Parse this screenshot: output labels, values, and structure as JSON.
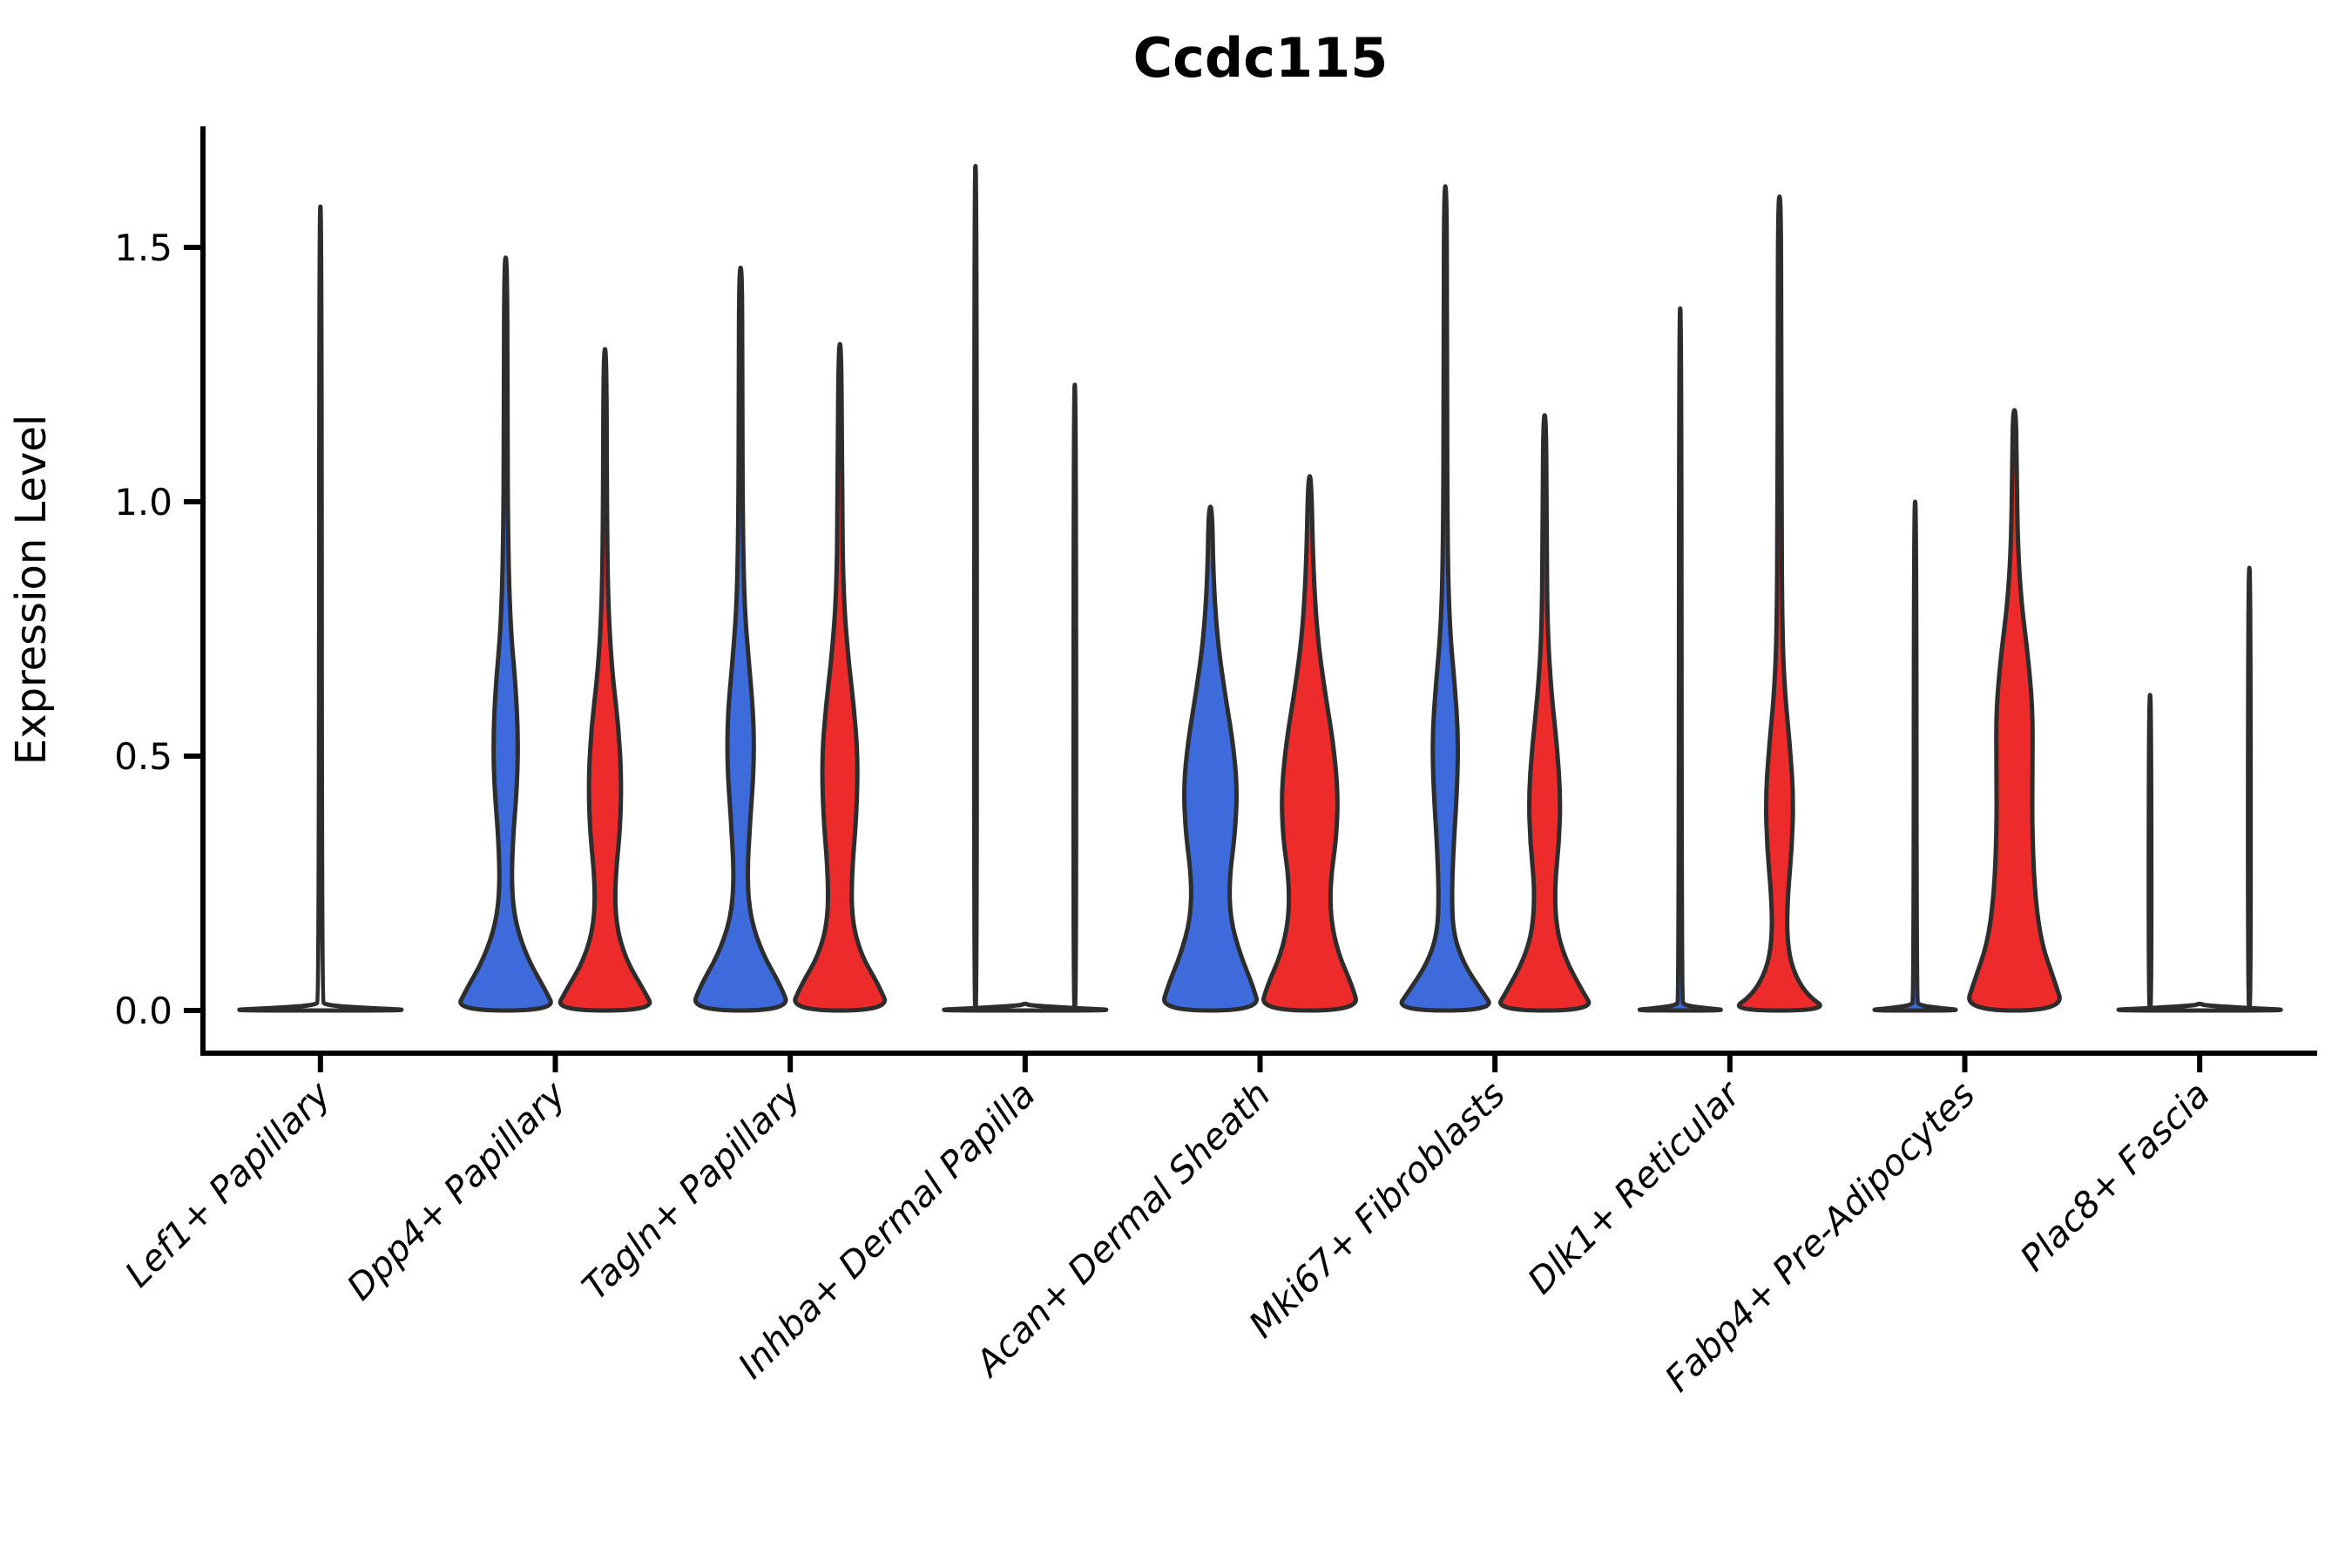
{
  "title": "Ccdc115",
  "ylabel": "Expression Level",
  "colors": {
    "blue": "#3D6BDC",
    "red": "#EE2B2B",
    "outline": "#2D2D2D",
    "axis": "#000000",
    "background": "#ffffff"
  },
  "chart_data": {
    "type": "violin",
    "title": "Ccdc115",
    "xlabel": "",
    "ylabel": "Expression Level",
    "yticks": [
      "0.0",
      "0.5",
      "1.0",
      "1.5"
    ],
    "ytick_values": [
      0.0,
      0.5,
      1.0,
      1.5
    ],
    "ylim": [
      0,
      1.74
    ],
    "grid": false,
    "legend": "none",
    "categories": [
      "Lef1+ Papillary",
      "Dpp4+ Papillary",
      "Tagln+ Papillary",
      "Inhba+ Dermal Papilla",
      "Acan+ Dermal Sheath",
      "Mki67+ Fibroblasts",
      "Dlk1+ Reticular",
      "Fabp4+ Pre-Adipocytes",
      "Plac8+ Fascia"
    ],
    "groups": [
      {
        "key": "blue",
        "color": "#3D6BDC",
        "dodge": "left"
      },
      {
        "key": "red",
        "color": "#EE2B2B",
        "dodge": "right"
      }
    ],
    "violins": [
      {
        "category_index": 0,
        "side": "center",
        "group": null,
        "max": 1.58,
        "profile": [
          [
            0,
            2.0
          ],
          [
            0.004,
            1.1
          ],
          [
            0.01,
            0.1
          ],
          [
            0.02,
            0.03
          ],
          [
            1.58,
            0.022
          ]
        ]
      },
      {
        "category_index": 1,
        "side": "left",
        "group": "blue",
        "max": 1.48,
        "profile": [
          [
            0,
            1.0
          ],
          [
            0.04,
            0.8
          ],
          [
            0.1,
            0.45
          ],
          [
            0.17,
            0.2
          ],
          [
            0.24,
            0.12
          ],
          [
            0.33,
            0.14
          ],
          [
            0.44,
            0.23
          ],
          [
            0.54,
            0.25
          ],
          [
            0.64,
            0.2
          ],
          [
            0.75,
            0.1
          ],
          [
            0.9,
            0.05
          ],
          [
            1.15,
            0.035
          ],
          [
            1.48,
            0.03
          ]
        ]
      },
      {
        "category_index": 1,
        "side": "right",
        "group": "red",
        "max": 1.3,
        "profile": [
          [
            0,
            1.0
          ],
          [
            0.04,
            0.78
          ],
          [
            0.1,
            0.42
          ],
          [
            0.17,
            0.22
          ],
          [
            0.25,
            0.2
          ],
          [
            0.36,
            0.31
          ],
          [
            0.46,
            0.33
          ],
          [
            0.56,
            0.27
          ],
          [
            0.66,
            0.15
          ],
          [
            0.78,
            0.07
          ],
          [
            0.95,
            0.04
          ],
          [
            1.3,
            0.03
          ]
        ]
      },
      {
        "category_index": 2,
        "side": "left",
        "group": "blue",
        "max": 1.46,
        "profile": [
          [
            0,
            1.0
          ],
          [
            0.05,
            0.8
          ],
          [
            0.11,
            0.45
          ],
          [
            0.18,
            0.2
          ],
          [
            0.26,
            0.13
          ],
          [
            0.37,
            0.19
          ],
          [
            0.48,
            0.27
          ],
          [
            0.58,
            0.26
          ],
          [
            0.68,
            0.17
          ],
          [
            0.79,
            0.08
          ],
          [
            0.95,
            0.045
          ],
          [
            1.2,
            0.035
          ],
          [
            1.46,
            0.03
          ]
        ]
      },
      {
        "category_index": 2,
        "side": "right",
        "group": "red",
        "max": 1.31,
        "profile": [
          [
            0,
            1.0
          ],
          [
            0.05,
            0.78
          ],
          [
            0.11,
            0.42
          ],
          [
            0.18,
            0.24
          ],
          [
            0.27,
            0.24
          ],
          [
            0.39,
            0.34
          ],
          [
            0.5,
            0.36
          ],
          [
            0.6,
            0.28
          ],
          [
            0.7,
            0.16
          ],
          [
            0.82,
            0.07
          ],
          [
            1.0,
            0.045
          ],
          [
            1.31,
            0.03
          ]
        ]
      },
      {
        "category_index": 3,
        "side": "center",
        "group": null,
        "max": 0.013,
        "profile": [
          [
            0,
            2.0
          ],
          [
            0.004,
            1.1
          ],
          [
            0.01,
            0.1
          ],
          [
            0.013,
            0.03
          ]
        ]
      },
      {
        "category_index": 3,
        "side": "left",
        "group": "blue",
        "max": 1.66,
        "profile": [
          [
            0,
            0.03
          ],
          [
            1.66,
            0.022
          ]
        ]
      },
      {
        "category_index": 3,
        "side": "right",
        "group": "red",
        "max": 1.23,
        "profile": [
          [
            0,
            0.03
          ],
          [
            1.23,
            0.022
          ]
        ]
      },
      {
        "category_index": 4,
        "side": "left",
        "group": "blue",
        "max": 0.99,
        "profile": [
          [
            0,
            1.0
          ],
          [
            0.05,
            0.85
          ],
          [
            0.11,
            0.6
          ],
          [
            0.18,
            0.4
          ],
          [
            0.26,
            0.38
          ],
          [
            0.35,
            0.5
          ],
          [
            0.44,
            0.54
          ],
          [
            0.53,
            0.45
          ],
          [
            0.63,
            0.28
          ],
          [
            0.73,
            0.14
          ],
          [
            0.85,
            0.06
          ],
          [
            0.99,
            0.035
          ]
        ]
      },
      {
        "category_index": 4,
        "side": "right",
        "group": "red",
        "max": 1.05,
        "profile": [
          [
            0,
            1.0
          ],
          [
            0.05,
            0.85
          ],
          [
            0.11,
            0.58
          ],
          [
            0.18,
            0.42
          ],
          [
            0.26,
            0.42
          ],
          [
            0.34,
            0.54
          ],
          [
            0.43,
            0.57
          ],
          [
            0.53,
            0.47
          ],
          [
            0.63,
            0.3
          ],
          [
            0.74,
            0.15
          ],
          [
            0.87,
            0.07
          ],
          [
            1.05,
            0.032
          ]
        ]
      },
      {
        "category_index": 5,
        "side": "left",
        "group": "blue",
        "max": 1.62,
        "profile": [
          [
            0,
            1.0
          ],
          [
            0.04,
            0.72
          ],
          [
            0.09,
            0.38
          ],
          [
            0.15,
            0.16
          ],
          [
            0.23,
            0.13
          ],
          [
            0.33,
            0.17
          ],
          [
            0.44,
            0.24
          ],
          [
            0.54,
            0.26
          ],
          [
            0.64,
            0.19
          ],
          [
            0.75,
            0.09
          ],
          [
            0.9,
            0.045
          ],
          [
            1.25,
            0.032
          ],
          [
            1.62,
            0.028
          ]
        ]
      },
      {
        "category_index": 5,
        "side": "right",
        "group": "red",
        "max": 1.17,
        "profile": [
          [
            0,
            1.0
          ],
          [
            0.04,
            0.75
          ],
          [
            0.1,
            0.42
          ],
          [
            0.16,
            0.24
          ],
          [
            0.24,
            0.2
          ],
          [
            0.33,
            0.29
          ],
          [
            0.42,
            0.32
          ],
          [
            0.52,
            0.25
          ],
          [
            0.62,
            0.14
          ],
          [
            0.74,
            0.06
          ],
          [
            0.92,
            0.04
          ],
          [
            1.17,
            0.03
          ]
        ]
      },
      {
        "category_index": 6,
        "side": "left",
        "group": "blue",
        "max": 1.38,
        "profile": [
          [
            0,
            1.0
          ],
          [
            0.004,
            0.55
          ],
          [
            0.01,
            0.08
          ],
          [
            0.02,
            0.03
          ],
          [
            1.38,
            0.022
          ]
        ]
      },
      {
        "category_index": 6,
        "side": "right",
        "group": "red",
        "max": 1.6,
        "profile": [
          [
            0,
            1.0
          ],
          [
            0.03,
            0.55
          ],
          [
            0.08,
            0.26
          ],
          [
            0.14,
            0.15
          ],
          [
            0.22,
            0.16
          ],
          [
            0.32,
            0.25
          ],
          [
            0.42,
            0.28
          ],
          [
            0.52,
            0.21
          ],
          [
            0.62,
            0.11
          ],
          [
            0.74,
            0.055
          ],
          [
            1.0,
            0.04
          ],
          [
            1.3,
            0.035
          ],
          [
            1.6,
            0.028
          ]
        ]
      },
      {
        "category_index": 7,
        "side": "left",
        "group": "blue",
        "max": 1.0,
        "profile": [
          [
            0,
            1.0
          ],
          [
            0.004,
            0.55
          ],
          [
            0.01,
            0.08
          ],
          [
            0.02,
            0.03
          ],
          [
            1.0,
            0.022
          ]
        ]
      },
      {
        "category_index": 7,
        "side": "right",
        "group": "red",
        "max": 1.18,
        "profile": [
          [
            0,
            1.0
          ],
          [
            0.06,
            0.8
          ],
          [
            0.13,
            0.55
          ],
          [
            0.22,
            0.42
          ],
          [
            0.34,
            0.36
          ],
          [
            0.47,
            0.36
          ],
          [
            0.59,
            0.37
          ],
          [
            0.7,
            0.27
          ],
          [
            0.8,
            0.14
          ],
          [
            0.91,
            0.07
          ],
          [
            1.05,
            0.045
          ],
          [
            1.18,
            0.032
          ]
        ]
      },
      {
        "category_index": 8,
        "side": "center",
        "group": null,
        "max": 0.013,
        "profile": [
          [
            0,
            2.0
          ],
          [
            0.004,
            1.1
          ],
          [
            0.01,
            0.1
          ],
          [
            0.013,
            0.03
          ]
        ]
      },
      {
        "category_index": 8,
        "side": "left",
        "group": "blue",
        "max": 0.62,
        "profile": [
          [
            0,
            0.03
          ],
          [
            0.62,
            0.022
          ]
        ]
      },
      {
        "category_index": 8,
        "side": "right",
        "group": "red",
        "max": 0.87,
        "profile": [
          [
            0,
            0.03
          ],
          [
            0.87,
            0.022
          ]
        ]
      }
    ]
  }
}
